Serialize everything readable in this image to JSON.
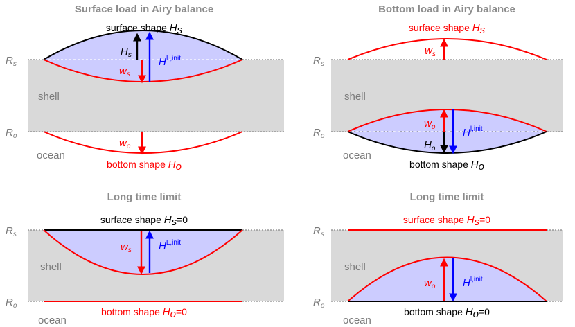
{
  "colors": {
    "shell": "#d9d9d9",
    "load": "#ccccff",
    "red": "#ff0000",
    "blue": "#0000ff",
    "black": "#000000",
    "grey_text": "#7a7a7a",
    "title": "#8c8c8c"
  },
  "labels": {
    "Rs_R": "R",
    "Rs_sub": "s",
    "Ro_R": "R",
    "Ro_sub": "o",
    "shell": "shell",
    "ocean": "ocean",
    "Hs_H": "H",
    "Hs_sub": "s",
    "Ho_H": "H",
    "Ho_sub": "o",
    "ws_w": "w",
    "ws_sub": "s",
    "wo_w": "w",
    "wo_sub": "o",
    "H_sym": "H",
    "HL_sup": "L,init",
    "Hl_sup": "l,init",
    "surface_shape": "surface shape ",
    "bottom_shape": "bottom shape ",
    "eq_zero": "=0"
  },
  "panels": {
    "tl": {
      "title": "Surface load in Airy balance"
    },
    "tr": {
      "title": "Bottom load in Airy balance"
    },
    "bl": {
      "title": "Long time limit"
    },
    "br": {
      "title": "Long time limit"
    }
  }
}
